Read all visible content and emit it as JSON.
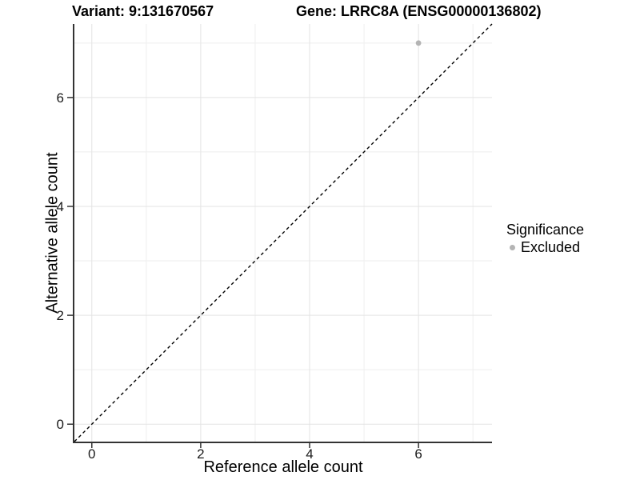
{
  "header": {
    "variant_title": "Variant: 9:131670567",
    "gene_title": "Gene: LRRC8A (ENSG00000136802)"
  },
  "chart_data": {
    "type": "scatter",
    "xlabel": "Reference allele count",
    "ylabel": "Alternative allele count",
    "xlim": [
      -0.32,
      7.35
    ],
    "ylim": [
      -0.32,
      7.35
    ],
    "x_major_ticks": [
      0,
      2,
      4,
      6
    ],
    "y_major_ticks": [
      0,
      2,
      4,
      6
    ],
    "x_minor_gridlines": [
      1,
      3,
      5,
      7
    ],
    "y_minor_gridlines": [
      1,
      3,
      5,
      7
    ],
    "grid_on": true,
    "points": [
      {
        "x": 6,
        "y": 7,
        "series": "Excluded"
      }
    ],
    "reference_line": {
      "slope": 1,
      "intercept": 0,
      "style": "dashed"
    },
    "legend": {
      "title": "Significance",
      "position": "right",
      "items": [
        {
          "label": "Excluded",
          "color": "#b4b4b4"
        }
      ]
    },
    "colors": {
      "background": "#ffffff",
      "grid_major": "#e3e3e3",
      "grid_minor": "#eeeeee",
      "axis_line": "#333333",
      "tick_label": "#1a1a1a",
      "reference_line": "#000000",
      "point": "#b4b4b4"
    }
  }
}
